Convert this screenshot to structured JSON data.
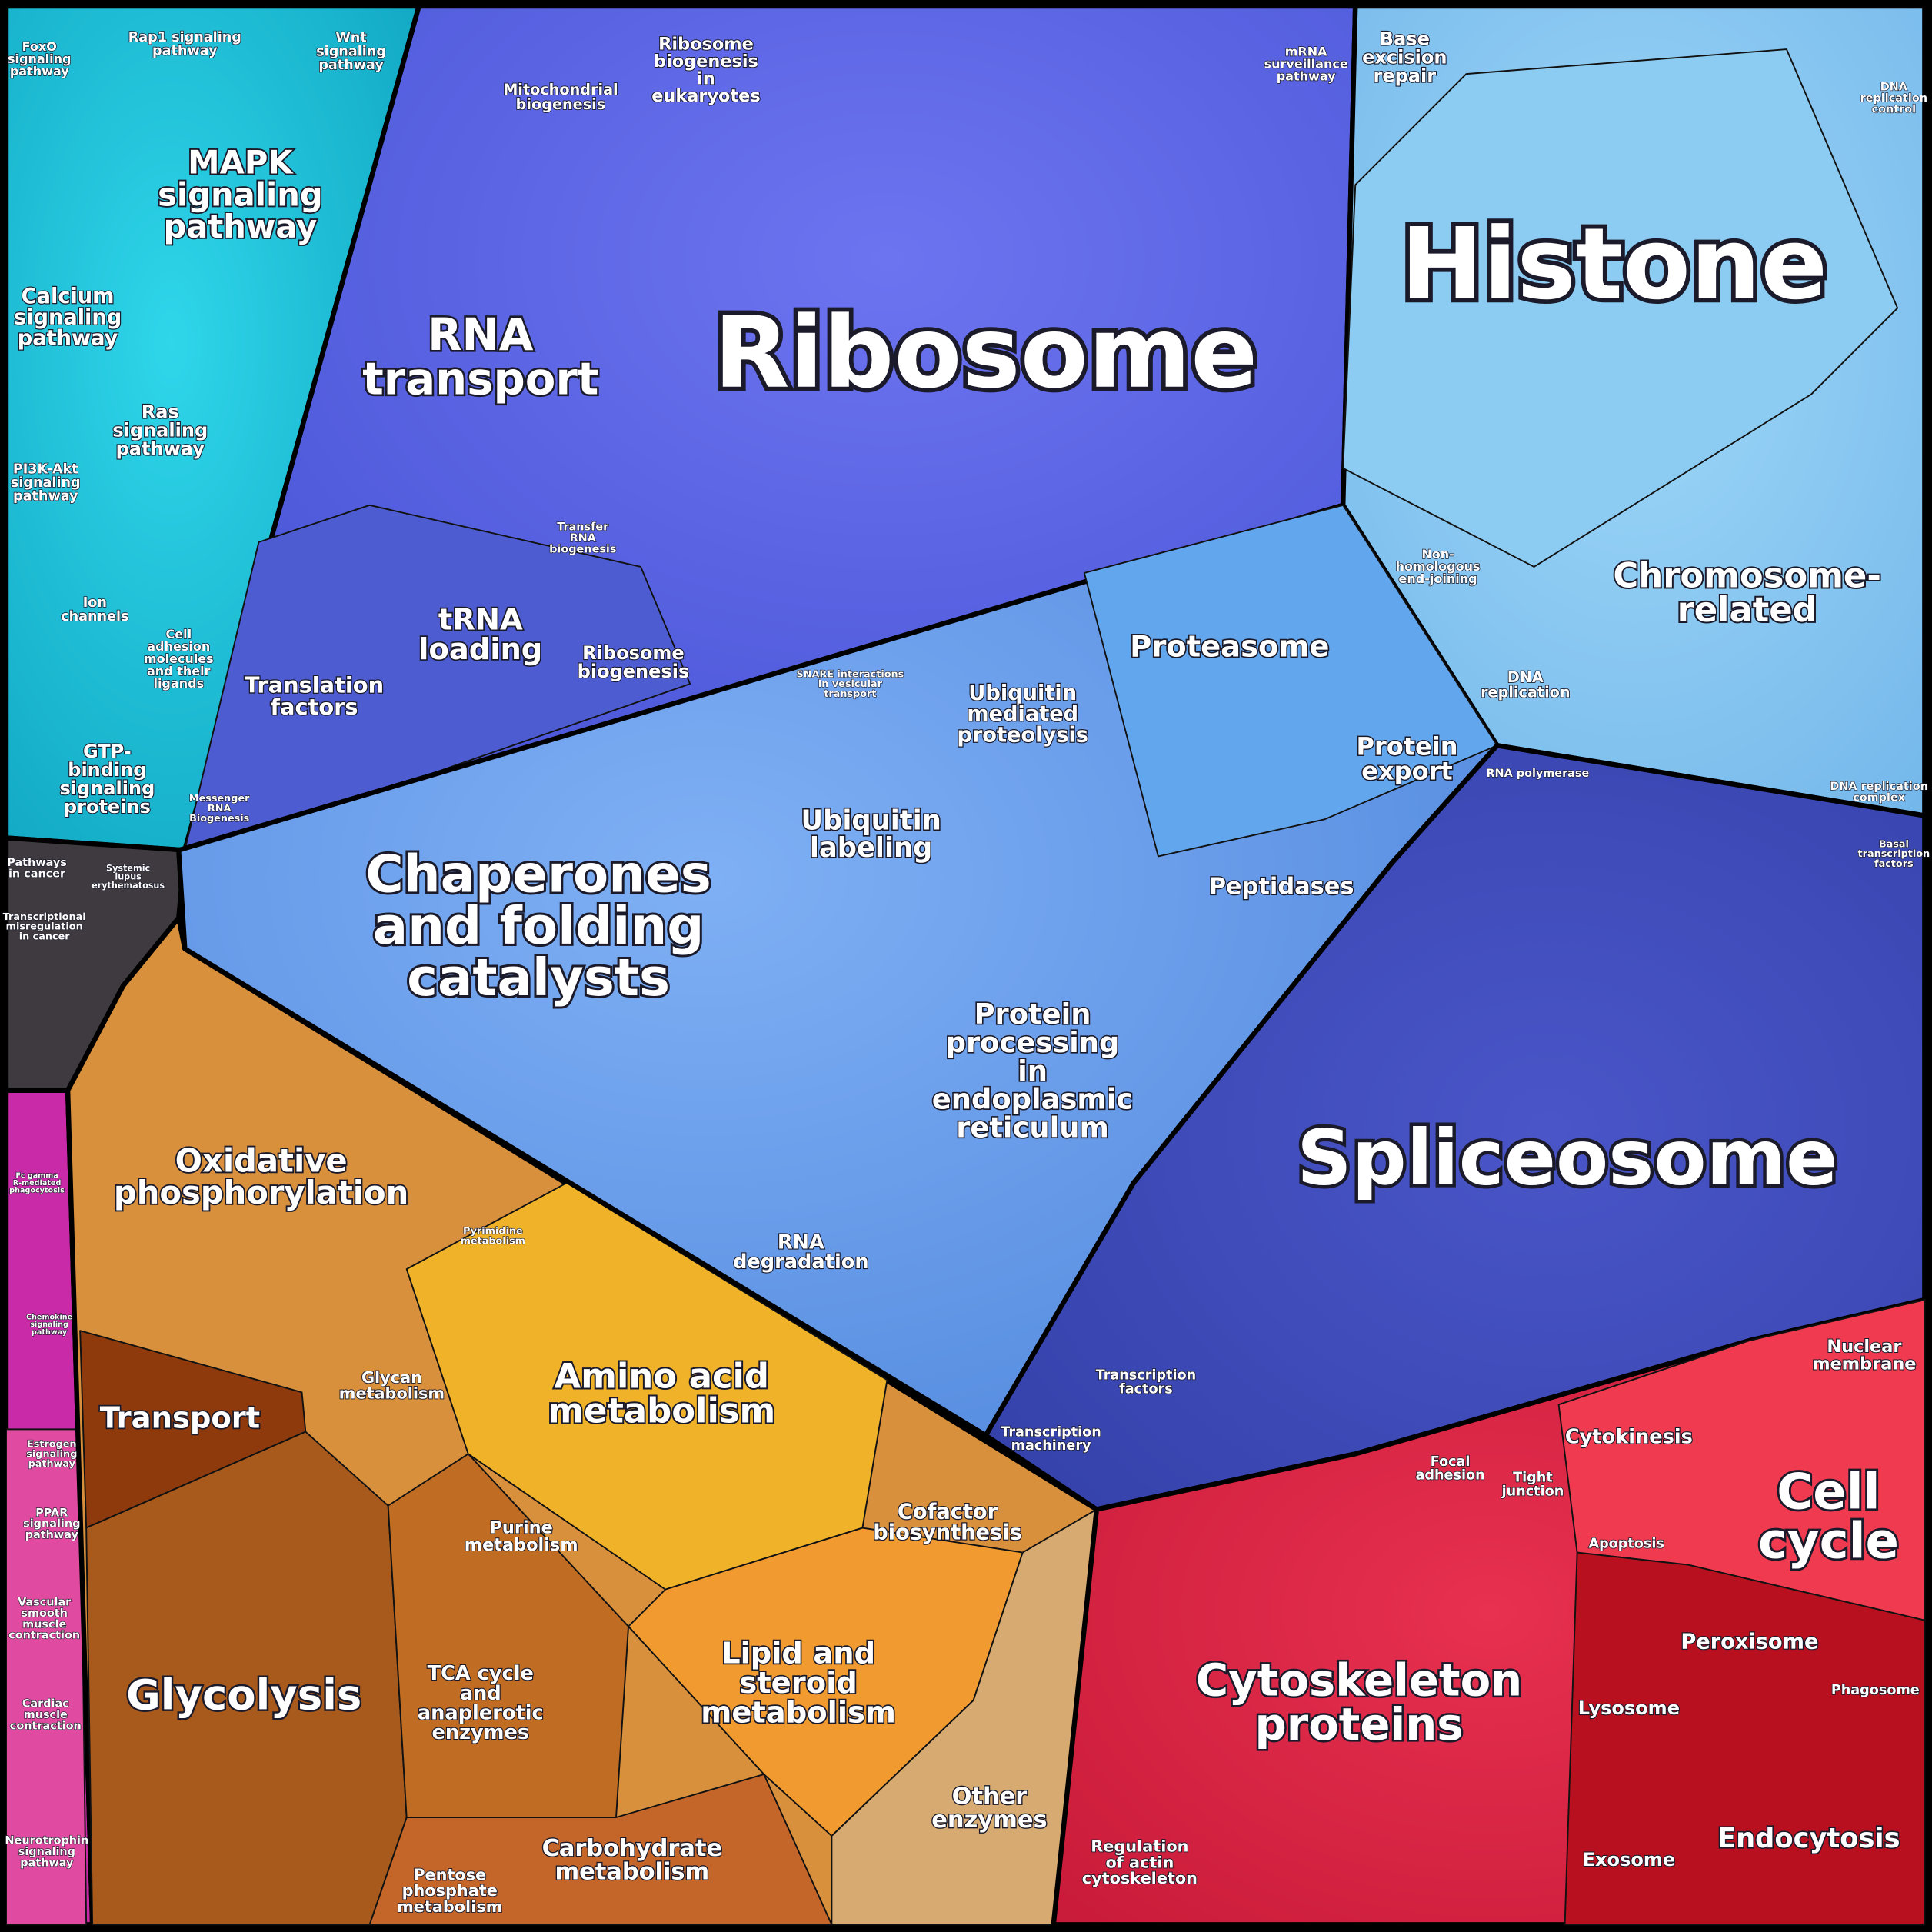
{
  "labels": [
    [
      "FoxO",
      "signaling",
      "pathway"
    ],
    [
      "Rap1 signaling",
      "pathway"
    ],
    [
      "Wnt",
      "signaling",
      "pathway"
    ],
    [
      "MAPK",
      "signaling",
      "pathway"
    ],
    [
      "Calcium",
      "signaling",
      "pathway"
    ],
    [
      "Ras",
      "signaling",
      "pathway"
    ],
    [
      "PI3K-Akt",
      "signaling",
      "pathway"
    ],
    [
      "Ion",
      "channels"
    ],
    [
      "Cell",
      "adhesion",
      "molecules",
      "and their",
      "ligands"
    ],
    [
      "GTP-",
      "binding",
      "signaling",
      "proteins"
    ],
    [
      "Pathways",
      "in cancer"
    ],
    [
      "Systemic",
      "lupus",
      "erythematosus"
    ],
    [
      "Transcriptional",
      "misregulation",
      "in cancer"
    ],
    [
      "Fc gamma",
      "R-mediated",
      "phagocytosis"
    ],
    [
      "Chemokine",
      "signaling",
      "pathway"
    ],
    [
      "Estrogen",
      "signaling",
      "pathway"
    ],
    [
      "PPAR",
      "signaling",
      "pathway"
    ],
    [
      "Vascular",
      "smooth",
      "muscle",
      "contraction"
    ],
    [
      "Cardiac",
      "muscle",
      "contraction"
    ],
    [
      "Neurotrophin",
      "signaling",
      "pathway"
    ],
    [
      "Oxidative",
      "phosphorylation"
    ],
    [
      "Transport"
    ],
    [
      "Glycolysis"
    ],
    [
      "TCA cycle",
      "and",
      "anaplerotic",
      "enzymes"
    ],
    [
      "Pentose",
      "phosphate",
      "metabolism"
    ],
    [
      "Carbohydrate",
      "metabolism"
    ],
    [
      "Glycan",
      "metabolism"
    ],
    [
      "Pyrimidine",
      "metabolism"
    ],
    [
      "Amino acid",
      "metabolism"
    ],
    [
      "Purine",
      "metabolism"
    ],
    [
      "Cofactor",
      "biosynthesis"
    ],
    [
      "Lipid and",
      "steroid",
      "metabolism"
    ],
    [
      "Other",
      "enzymes"
    ],
    [
      "Mitochondrial",
      "biogenesis"
    ],
    [
      "Ribosome",
      "biogenesis",
      "in",
      "eukaryotes"
    ],
    [
      "mRNA",
      "surveillance",
      "pathway"
    ],
    [
      "Ribosome"
    ],
    [
      "RNA",
      "transport"
    ],
    [
      "tRNA",
      "loading"
    ],
    [
      "Transfer",
      "RNA",
      "biogenesis"
    ],
    [
      "Ribosome",
      "biogenesis"
    ],
    [
      "Translation",
      "factors"
    ],
    [
      "Messenger",
      "RNA",
      "Biogenesis"
    ],
    [
      "Base",
      "excision",
      "repair"
    ],
    [
      "Histone"
    ],
    [
      "DNA",
      "replication",
      "control"
    ],
    [
      "Non-",
      "homologous",
      "end-joining"
    ],
    [
      "Chromosome-",
      "related"
    ],
    [
      "DNA",
      "replication"
    ],
    [
      "DNA replication",
      "complex"
    ],
    [
      "SNARE interactions",
      "in vesicular",
      "transport"
    ],
    [
      "Ubiquitin",
      "mediated",
      "proteolysis"
    ],
    [
      "Proteasome"
    ],
    [
      "Protein",
      "export"
    ],
    [
      "RNA polymerase"
    ],
    [
      "Chaperones",
      "and folding",
      "catalysts"
    ],
    [
      "Ubiquitin",
      "labeling"
    ],
    [
      "Peptidases"
    ],
    [
      "Protein",
      "processing",
      "in",
      "endoplasmic",
      "reticulum"
    ],
    [
      "RNA",
      "degradation"
    ],
    [
      "Basal",
      "transcription",
      "factors"
    ],
    [
      "Spliceosome"
    ],
    [
      "Transcription",
      "factors"
    ],
    [
      "Transcription",
      "machinery"
    ],
    [
      "Nuclear",
      "membrane"
    ],
    [
      "Cytokinesis"
    ],
    [
      "Focal",
      "adhesion"
    ],
    [
      "Tight",
      "junction"
    ],
    [
      "Cell",
      "cycle"
    ],
    [
      "Apoptosis"
    ],
    [
      "Peroxisome"
    ],
    [
      "Cytoskeleton",
      "proteins"
    ],
    [
      "Lysosome"
    ],
    [
      "Phagosome"
    ],
    [
      "Regulation",
      "of actin",
      "cytoskeleton"
    ],
    [
      "Exosome"
    ],
    [
      "Endocytosis"
    ]
  ]
}
